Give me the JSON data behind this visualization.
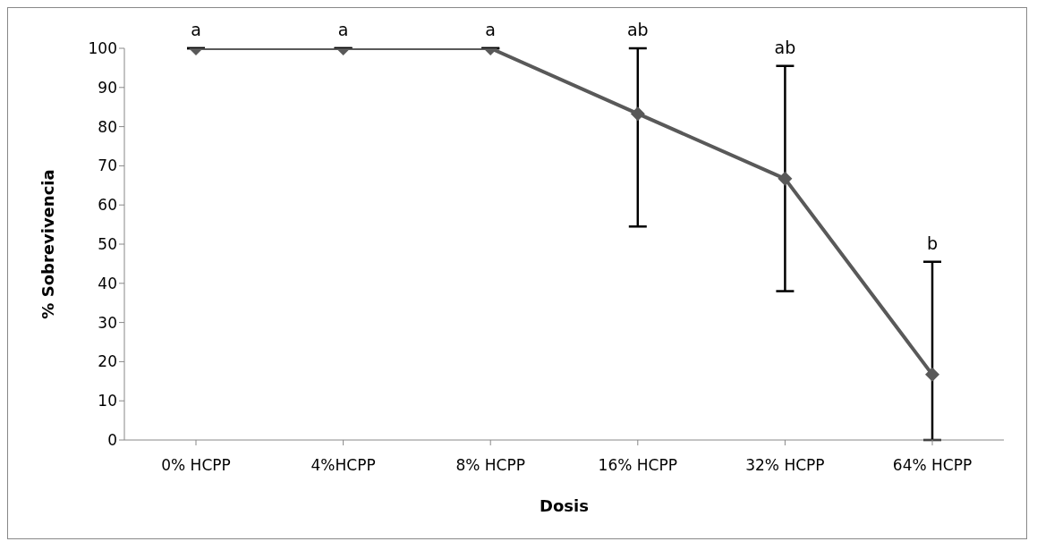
{
  "chart_data": {
    "type": "line",
    "xlabel": "Dosis",
    "ylabel": "% Sobrevivencia",
    "categories": [
      "0% HCPP",
      "4%HCPP",
      "8% HCPP",
      "16% HCPP",
      "32% HCPP",
      "64% HCPP"
    ],
    "series": [
      {
        "color": "#595959",
        "values": [
          100,
          100,
          100,
          83.3,
          66.7,
          16.7
        ],
        "errors": [
          null,
          null,
          null,
          [
            54.5,
            100
          ],
          [
            38,
            95.5
          ],
          [
            0,
            45.5
          ]
        ]
      }
    ],
    "ylim": [
      0,
      100
    ],
    "yticks": [
      0,
      10,
      20,
      30,
      40,
      50,
      60,
      70,
      80,
      90,
      100
    ],
    "grid": false,
    "legend": false,
    "marker": "diamond",
    "line_style": "solid",
    "annotations": [
      {
        "text": "a",
        "x": "0% HCPP",
        "y": 100
      },
      {
        "text": "a",
        "x": "4%HCPP",
        "y": 100
      },
      {
        "text": "a",
        "x": "8% HCPP",
        "y": 100
      },
      {
        "text": "ab",
        "x": "16% HCPP",
        "y": 100
      },
      {
        "text": "ab",
        "x": "32% HCPP",
        "y": 95.5
      },
      {
        "text": "b",
        "x": "64% HCPP",
        "y": 45.5
      }
    ]
  }
}
